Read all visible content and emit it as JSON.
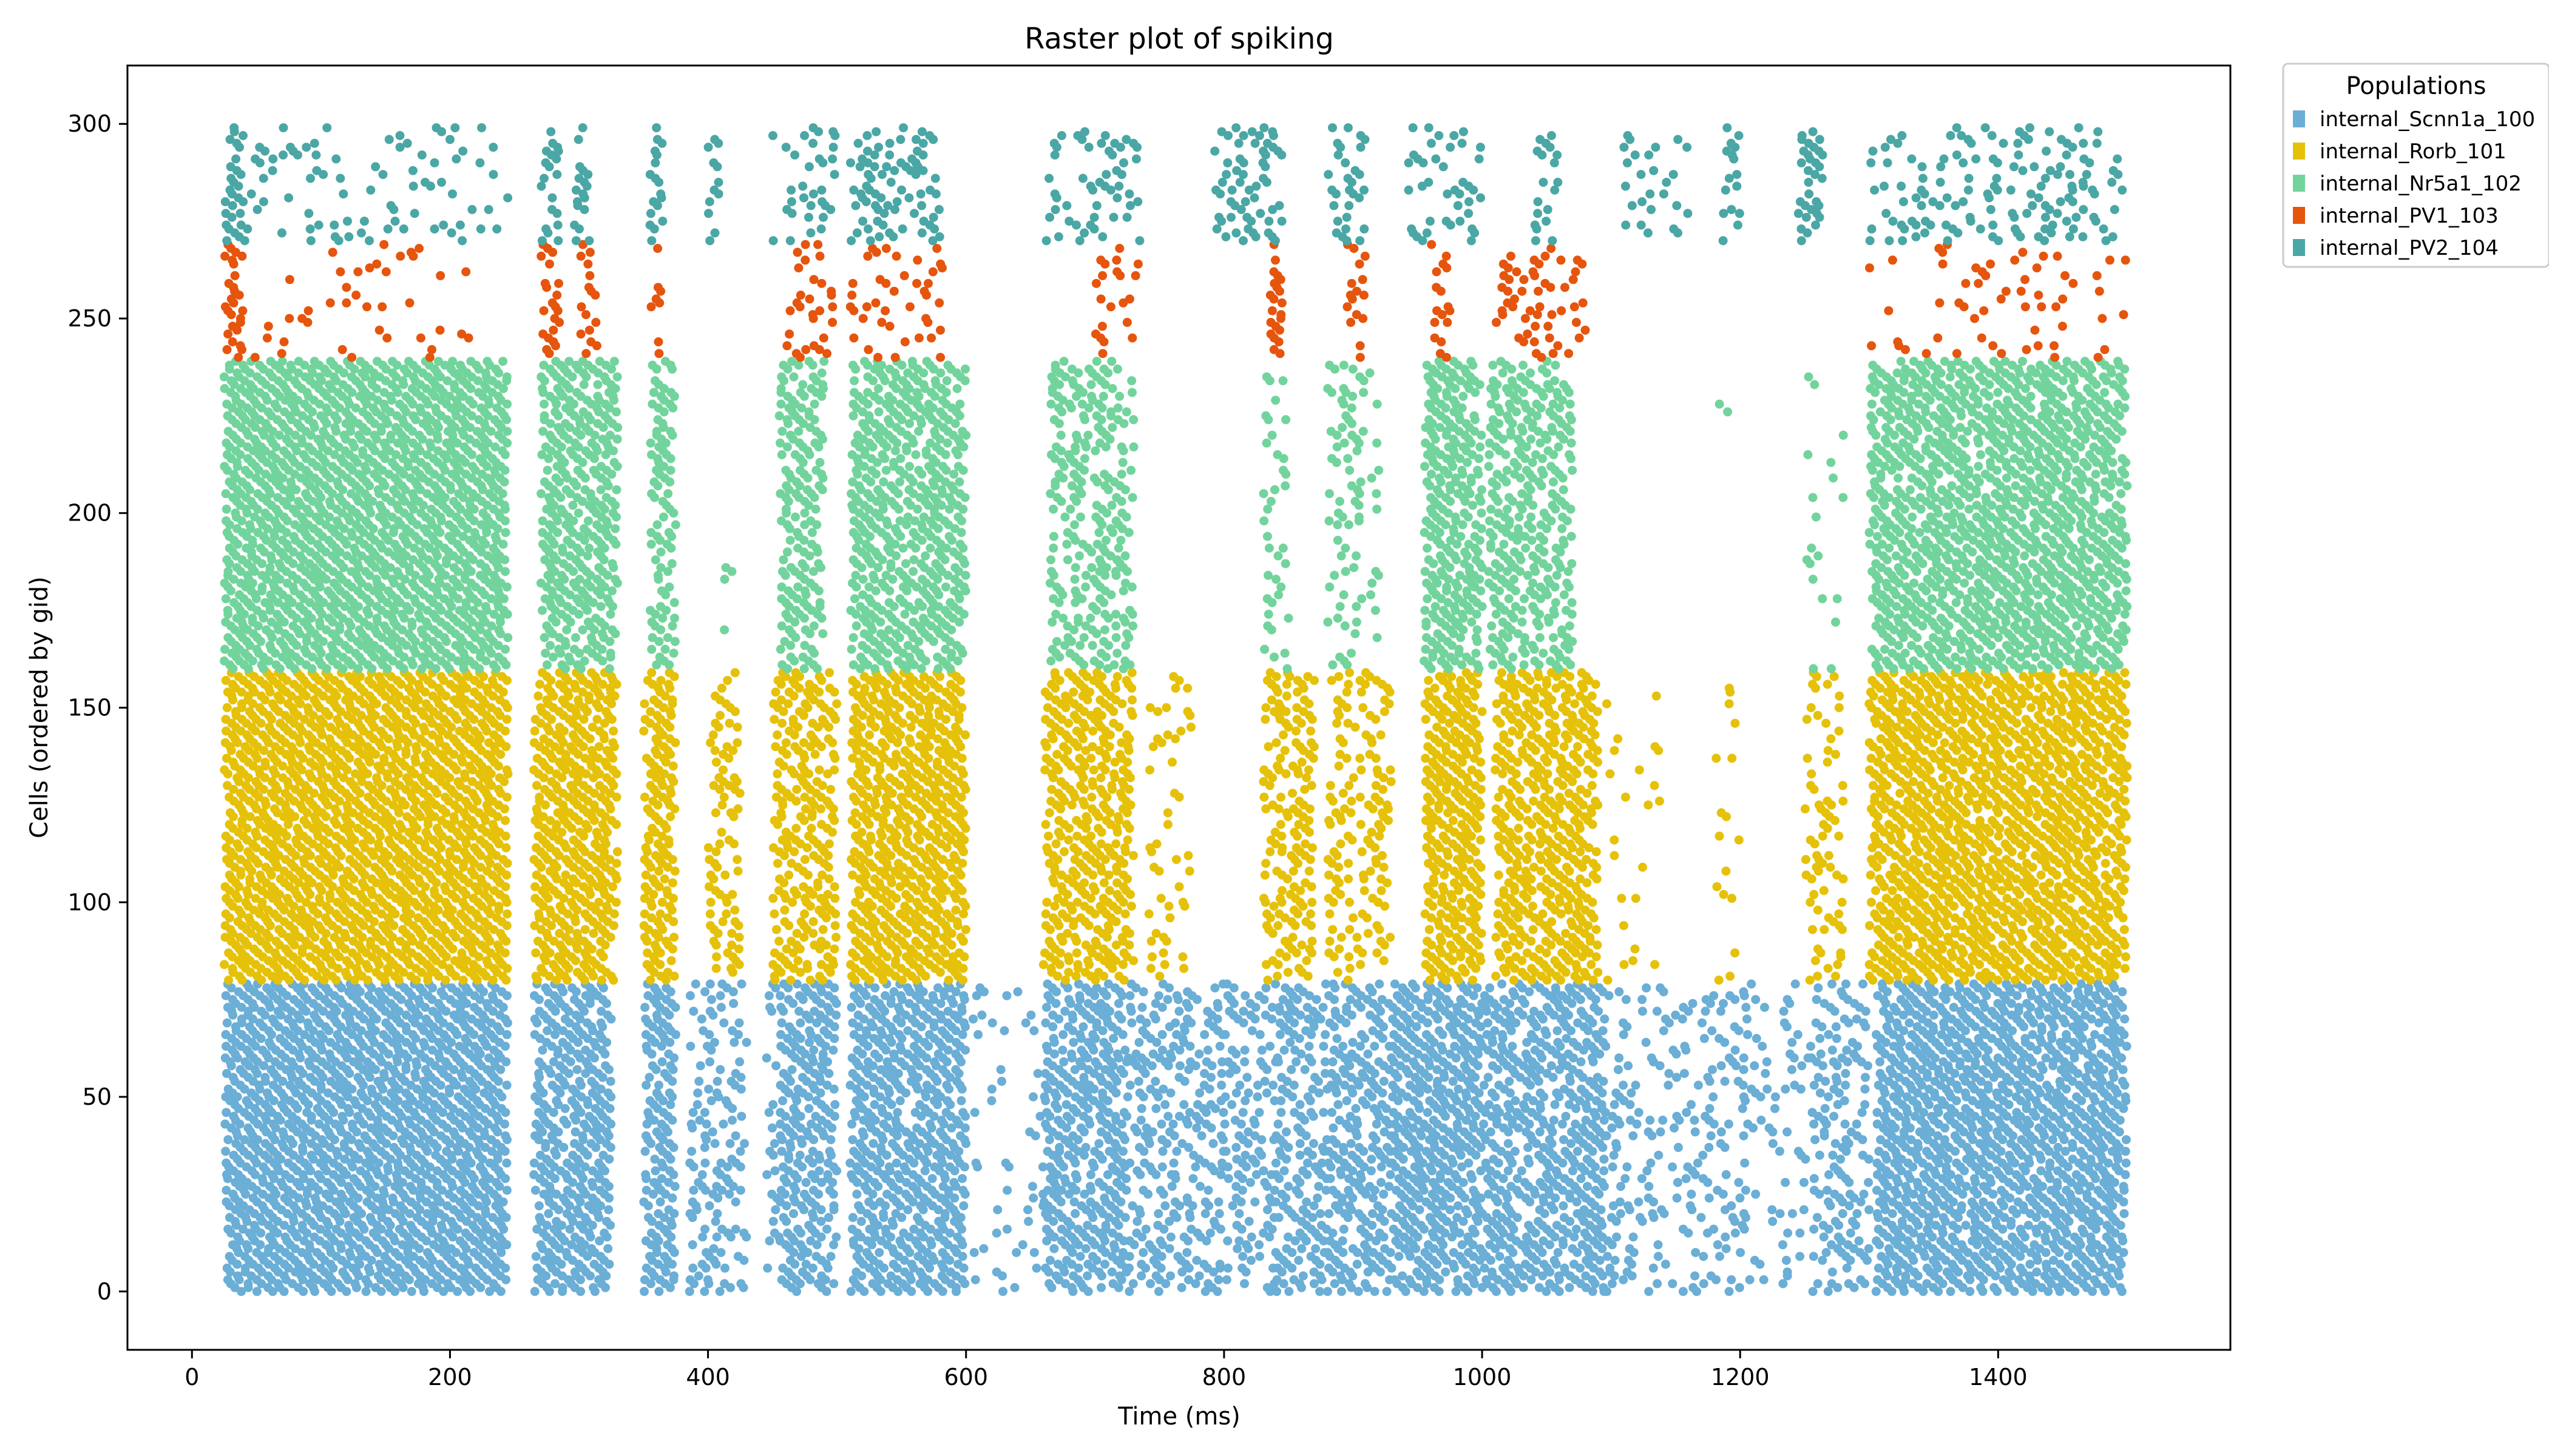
{
  "chart_data": {
    "type": "scatter",
    "title": "Raster plot of spiking",
    "xlabel": "Time (ms)",
    "ylabel": "Cells (ordered by gid)",
    "xlim": [
      -50,
      1580
    ],
    "ylim": [
      -15,
      315
    ],
    "xticks": [
      0,
      200,
      400,
      600,
      800,
      1000,
      1200,
      1400
    ],
    "yticks": [
      0,
      50,
      100,
      150,
      200,
      250,
      300
    ],
    "grid": false,
    "legend": {
      "title": "Populations",
      "placement": "outside-top-right"
    },
    "series": [
      {
        "name": "internal_Scnn1a_100",
        "color": "#6baed6",
        "gid_range": [
          0,
          79
        ],
        "bursts": [
          [
            25,
            245,
            1.0
          ],
          [
            265,
            325,
            0.9
          ],
          [
            350,
            375,
            0.9
          ],
          [
            385,
            430,
            0.45
          ],
          [
            445,
            455,
            0.3
          ],
          [
            455,
            500,
            0.8
          ],
          [
            510,
            600,
            0.9
          ],
          [
            605,
            660,
            0.12
          ],
          [
            660,
            725,
            0.85
          ],
          [
            725,
            760,
            0.5
          ],
          [
            760,
            800,
            0.45
          ],
          [
            800,
            840,
            0.45
          ],
          [
            840,
            880,
            0.6
          ],
          [
            880,
            930,
            0.7
          ],
          [
            930,
            1000,
            0.9
          ],
          [
            1000,
            1095,
            0.8
          ],
          [
            1095,
            1190,
            0.3
          ],
          [
            1190,
            1205,
            0.35
          ],
          [
            1205,
            1255,
            0.2
          ],
          [
            1255,
            1300,
            0.45
          ],
          [
            1305,
            1500,
            0.95
          ]
        ]
      },
      {
        "name": "internal_Rorb_101",
        "color": "#e6c10a",
        "gid_range": [
          80,
          159
        ],
        "bursts": [
          [
            25,
            245,
            1.0
          ],
          [
            265,
            330,
            0.95
          ],
          [
            350,
            375,
            0.9
          ],
          [
            400,
            425,
            0.45
          ],
          [
            450,
            500,
            0.7
          ],
          [
            510,
            600,
            0.95
          ],
          [
            660,
            730,
            0.75
          ],
          [
            740,
            775,
            0.15
          ],
          [
            830,
            870,
            0.6
          ],
          [
            880,
            930,
            0.45
          ],
          [
            955,
            1000,
            0.95
          ],
          [
            1010,
            1090,
            0.8
          ],
          [
            1095,
            1140,
            0.05
          ],
          [
            1180,
            1200,
            0.12
          ],
          [
            1250,
            1280,
            0.35
          ],
          [
            1300,
            1500,
            0.95
          ]
        ]
      },
      {
        "name": "internal_Nr5a1_102",
        "color": "#72d49c",
        "gid_range": [
          160,
          239
        ],
        "bursts": [
          [
            25,
            245,
            1.0
          ],
          [
            270,
            330,
            0.85
          ],
          [
            355,
            375,
            0.8
          ],
          [
            405,
            420,
            0.05
          ],
          [
            455,
            490,
            0.7
          ],
          [
            510,
            600,
            0.85
          ],
          [
            665,
            730,
            0.55
          ],
          [
            830,
            850,
            0.3
          ],
          [
            880,
            920,
            0.3
          ],
          [
            955,
            1000,
            0.9
          ],
          [
            1005,
            1070,
            0.7
          ],
          [
            1180,
            1200,
            0.04
          ],
          [
            1250,
            1280,
            0.12
          ],
          [
            1300,
            1500,
            0.9
          ]
        ]
      },
      {
        "name": "internal_PV1_103",
        "color": "#e6550d",
        "gid_range": [
          240,
          269
        ],
        "bursts": [
          [
            25,
            40,
            0.7
          ],
          [
            40,
            220,
            0.1
          ],
          [
            270,
            285,
            0.5
          ],
          [
            300,
            315,
            0.5
          ],
          [
            355,
            365,
            0.3
          ],
          [
            460,
            500,
            0.3
          ],
          [
            510,
            585,
            0.25
          ],
          [
            700,
            735,
            0.3
          ],
          [
            835,
            845,
            0.9
          ],
          [
            895,
            910,
            0.3
          ],
          [
            960,
            975,
            0.35
          ],
          [
            1010,
            1080,
            0.25
          ],
          [
            1300,
            1500,
            0.12
          ]
        ]
      },
      {
        "name": "internal_PV2_104",
        "color": "#4aa7a5",
        "gid_range": [
          270,
          299
        ],
        "bursts": [
          [
            25,
            40,
            0.8
          ],
          [
            40,
            245,
            0.18
          ],
          [
            270,
            285,
            0.6
          ],
          [
            295,
            310,
            0.45
          ],
          [
            355,
            365,
            0.7
          ],
          [
            400,
            410,
            0.4
          ],
          [
            450,
            500,
            0.3
          ],
          [
            510,
            580,
            0.4
          ],
          [
            660,
            735,
            0.25
          ],
          [
            790,
            845,
            0.45
          ],
          [
            880,
            910,
            0.35
          ],
          [
            940,
            1000,
            0.3
          ],
          [
            1040,
            1060,
            0.4
          ],
          [
            1110,
            1160,
            0.2
          ],
          [
            1185,
            1200,
            0.5
          ],
          [
            1245,
            1265,
            0.6
          ],
          [
            1300,
            1500,
            0.3
          ]
        ]
      }
    ]
  }
}
